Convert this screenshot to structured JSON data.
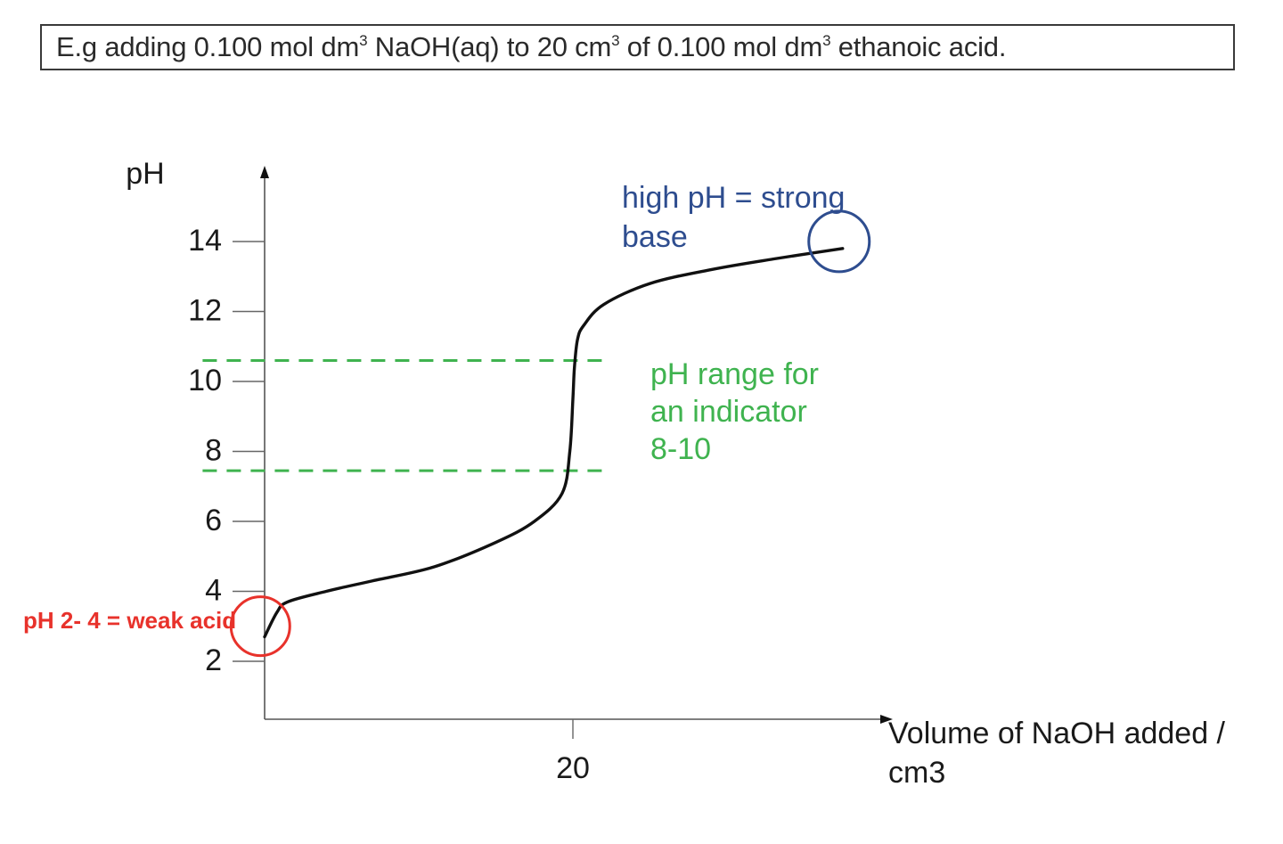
{
  "header": {
    "title_parts": [
      "E.g adding 0.100 mol dm",
      "3",
      " NaOH(aq) to 20 cm",
      "3",
      " of 0.100 mol dm",
      "3",
      " ethanoic acid."
    ]
  },
  "chart_data": {
    "type": "line",
    "title": "E.g adding 0.100 mol dm3 NaOH(aq) to 20 cm3 of 0.100 mol dm3 ethanoic acid.",
    "xlabel_lines": [
      "Volume of NaOH added /",
      "cm3"
    ],
    "ylabel": "pH",
    "y_ticks": [
      2,
      4,
      6,
      8,
      10,
      12,
      14
    ],
    "x_ticks": [
      20
    ],
    "xlim": [
      0,
      40
    ],
    "ylim": [
      0,
      15.5
    ],
    "grid": false,
    "series": [
      {
        "color": "#111111",
        "x": [
          0,
          0.8,
          1.5,
          4,
          7,
          11,
          15,
          17.5,
          19.3,
          19.8,
          20.0,
          20.1,
          20.3,
          20.7,
          22,
          25,
          29,
          33,
          37.5
        ],
        "y": [
          2.7,
          3.4,
          3.7,
          4.0,
          4.3,
          4.7,
          5.4,
          6.0,
          6.8,
          8.0,
          9.5,
          10.4,
          11.2,
          11.6,
          12.2,
          12.8,
          13.2,
          13.5,
          13.8
        ]
      }
    ],
    "reference_lines": [
      {
        "y": 10.6,
        "x_start": -2,
        "x_end": 22,
        "color": "#3fb34f",
        "style": "dashed"
      },
      {
        "y": 7.45,
        "x_start": -2,
        "x_end": 22,
        "color": "#3fb34f",
        "style": "dashed"
      }
    ],
    "annotations": [
      {
        "name": "strong-base",
        "lines": [
          "high pH = strong",
          "base"
        ],
        "color": "#2e4d8f",
        "circle_at": {
          "x": 37.5,
          "y": 13.8
        }
      },
      {
        "name": "indicator-range",
        "lines": [
          "pH range for",
          "an indicator",
          "8-10"
        ],
        "color": "#3fb34f"
      },
      {
        "name": "weak-acid",
        "lines": [
          "pH 2- 4 = weak acid"
        ],
        "color": "#e8322b",
        "circle_at": {
          "x": -0.1,
          "y": 2.85
        }
      }
    ]
  }
}
